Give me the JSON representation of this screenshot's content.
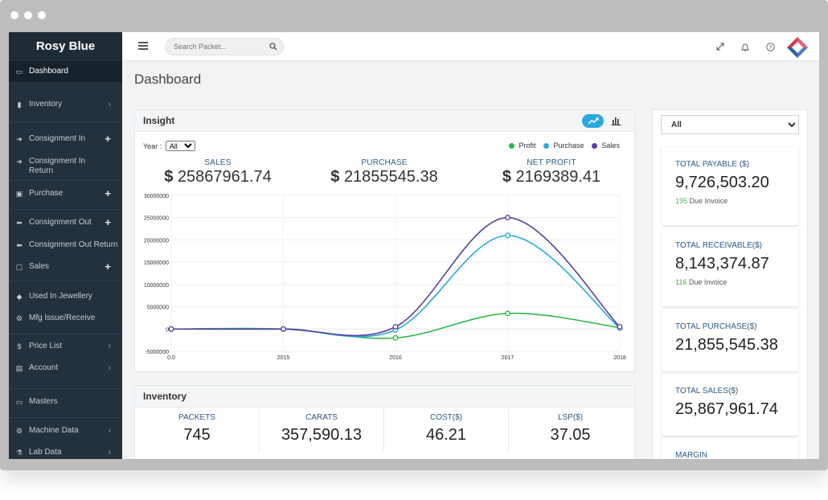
{
  "sidebar": {
    "brand": "Rosy Blue",
    "items": [
      {
        "label": "Dashboard",
        "icon": "monitor-icon",
        "right": ""
      },
      {
        "label": "Inventory",
        "icon": "bar-chart-icon",
        "right": "›"
      },
      {
        "label": "Consignment In",
        "icon": "arrow-right-icon",
        "right": "+"
      },
      {
        "label": "Consignment In Return",
        "icon": "arrow-right-icon",
        "right": ""
      },
      {
        "label": "Purchase",
        "icon": "cart-icon",
        "right": "+"
      },
      {
        "label": "Consignment Out",
        "icon": "arrow-left-icon",
        "right": "+"
      },
      {
        "label": "Consignment Out Return",
        "icon": "arrow-left-icon",
        "right": ""
      },
      {
        "label": "Sales",
        "icon": "clipboard-icon",
        "right": "+"
      },
      {
        "label": "Used In Jewellery",
        "icon": "diamond-icon",
        "right": ""
      },
      {
        "label": "Mfg Issue/Receive",
        "icon": "gears-icon",
        "right": ""
      },
      {
        "label": "Price List",
        "icon": "dollar-icon",
        "right": "›"
      },
      {
        "label": "Account",
        "icon": "money-icon",
        "right": "›"
      },
      {
        "label": "Masters",
        "icon": "desktop-icon",
        "right": ""
      },
      {
        "label": "Machine Data",
        "icon": "gears-icon",
        "right": "›"
      },
      {
        "label": "Lab Data",
        "icon": "flask-icon",
        "right": "›"
      }
    ]
  },
  "topbar": {
    "search_placeholder": "Search Packet..."
  },
  "page": {
    "title": "Dashboard"
  },
  "insight": {
    "title": "Insight",
    "year_label": "Year :",
    "year_value": "All",
    "legend": [
      {
        "name": "Profit",
        "color": "#2db84a"
      },
      {
        "name": "Purchase",
        "color": "#2ba9dc"
      },
      {
        "name": "Sales",
        "color": "#5b3f9e"
      }
    ],
    "kpis": [
      {
        "label": "SALES",
        "currency": "$",
        "value": "25867961.74"
      },
      {
        "label": "PURCHASE",
        "currency": "$",
        "value": "21855545.38"
      },
      {
        "label": "NET PROFIT",
        "currency": "$",
        "value": "2169389.41"
      }
    ]
  },
  "chart_data": {
    "type": "line",
    "x": [
      "0.0",
      "2015",
      "2016",
      "2017",
      "2018"
    ],
    "y_ticks": [
      "30000000",
      "25000000",
      "20000000",
      "15000000",
      "10000000",
      "5000000",
      "0",
      "-5000000"
    ],
    "ylim": [
      -5000000,
      30000000
    ],
    "series": [
      {
        "name": "Profit",
        "color": "#2db84a",
        "values": [
          0,
          0,
          -2000000,
          3500000,
          300000
        ]
      },
      {
        "name": "Purchase",
        "color": "#2ba9dc",
        "values": [
          0,
          0,
          -200000,
          21000000,
          200000
        ]
      },
      {
        "name": "Sales",
        "color": "#5b3f9e",
        "values": [
          0,
          0,
          500000,
          25000000,
          500000
        ]
      }
    ]
  },
  "inventory": {
    "title": "Inventory",
    "cells": [
      {
        "label": "PACKETS",
        "value": "745"
      },
      {
        "label": "CARATS",
        "value": "357,590.13"
      },
      {
        "label": "COST($)",
        "value": "46.21"
      },
      {
        "label": "LSP($)",
        "value": "37.05"
      }
    ]
  },
  "right": {
    "filter_value": "All",
    "stats": [
      {
        "label": "TOTAL PAYABLE ($)",
        "value": "9,726,503.20",
        "sub_count": "195",
        "sub_text": "Due Invoice"
      },
      {
        "label": "TOTAL RECEIVABLE($)",
        "value": "8,143,374.87",
        "sub_count": "116",
        "sub_text": "Due Invoice"
      },
      {
        "label": "TOTAL PURCHASE($)",
        "value": "21,855,545.38"
      },
      {
        "label": "TOTAL SALES($)",
        "value": "25,867,961.74"
      },
      {
        "label": "MARGIN"
      }
    ]
  }
}
